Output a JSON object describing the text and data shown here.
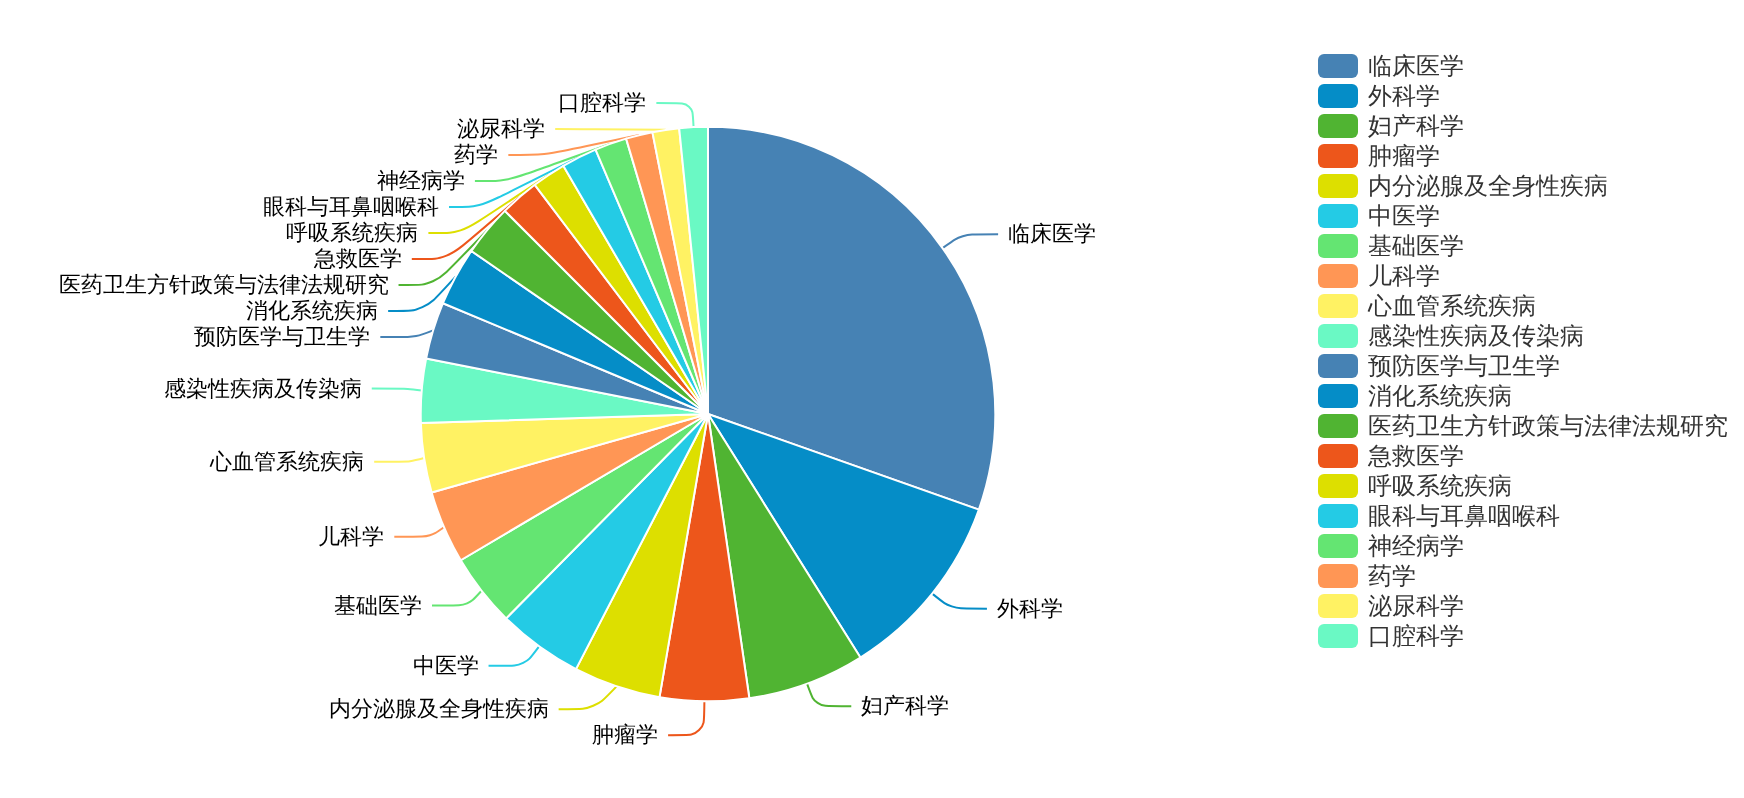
{
  "chart_data": {
    "type": "pie",
    "categories": [
      "临床医学",
      "外科学",
      "妇产科学",
      "肿瘤学",
      "内分泌腺及全身性疾病",
      "中医学",
      "基础医学",
      "儿科学",
      "心血管系统疾病",
      "感染性疾病及传染病",
      "预防医学与卫生学",
      "消化系统疾病",
      "医药卫生方针政策与法律法规研究",
      "急救医学",
      "呼吸系统疾病",
      "眼科与耳鼻咽喉科",
      "神经病学",
      "药学",
      "泌尿科学",
      "口腔科学"
    ],
    "values": [
      30.4,
      10.7,
      6.6,
      5.0,
      4.9,
      4.8,
      4.1,
      4.1,
      3.9,
      3.6,
      3.2,
      3.3,
      2.9,
      2.2,
      1.9,
      2.0,
      1.8,
      1.5,
      1.5,
      1.6
    ],
    "colors": [
      "#4682b4",
      "#058dc7",
      "#50b432",
      "#ed561b",
      "#dddf00",
      "#24cbe5",
      "#64e572",
      "#ff9655",
      "#fff263",
      "#6af9c4",
      "#4682b4",
      "#058dc7",
      "#50b432",
      "#ed561b",
      "#dddf00",
      "#24cbe5",
      "#64e572",
      "#ff9655",
      "#fff263",
      "#6af9c4"
    ],
    "legend": "right"
  }
}
